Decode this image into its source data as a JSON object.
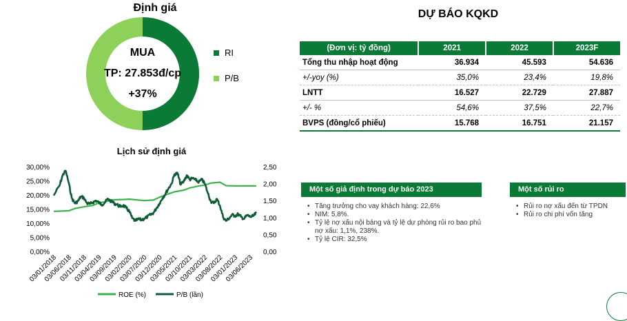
{
  "valuation": {
    "title": "Định giá",
    "recommendation": "MUA",
    "target_price": "TP: 27.853đ/cp",
    "upside": "+37%",
    "legend": [
      {
        "label": "RI",
        "color": "#0b7a36",
        "share": 0.5
      },
      {
        "label": "P/B",
        "color": "#8ed15a",
        "share": 0.5
      }
    ]
  },
  "forecast": {
    "title": "DỰ BÁO KQKD",
    "columns": [
      "(Đơn vị: tỷ đồng)",
      "2021",
      "2022",
      "2023F"
    ],
    "rows": [
      {
        "label": "Tổng thu nhập hoạt động",
        "values": [
          "36.934",
          "45.593",
          "54.636"
        ],
        "style": "bold"
      },
      {
        "label": "+/-yoy (%)",
        "values": [
          "35,0%",
          "23,4%",
          "19,8%"
        ],
        "style": "italic"
      },
      {
        "label": "LNTT",
        "values": [
          "16.527",
          "22.729",
          "27.887"
        ],
        "style": "bold"
      },
      {
        "label": "+/- %",
        "values": [
          "54,6%",
          "37,5%",
          "22,7%"
        ],
        "style": "italic"
      },
      {
        "label": "BVPS (đồng/cổ phiếu)",
        "values": [
          "15.768",
          "16.751",
          "21.157"
        ],
        "style": "bold"
      }
    ]
  },
  "assumptions": {
    "title": "Một số giả định trong dự báo 2023",
    "items": [
      "Tăng trưởng cho vay khách hàng: 22,6%",
      "NIM: 5,8%.",
      "Tỷ lệ nợ xấu nội bảng và tỷ lệ dự phòng rủi ro bao phủ nợ xấu: 1,1%, 238%.",
      "Tỷ lệ CIR: 32,5%"
    ]
  },
  "risks": {
    "title": "Một số rủi ro",
    "items": [
      "Rủi ro nợ xấu đến từ TPDN",
      "Rủi ro chi phí vốn tăng"
    ]
  },
  "chart_data": {
    "type": "line",
    "title": "Lịch sử định giá",
    "x_ticks": [
      "03/01/2018",
      "03/06/2018",
      "03/11/2018",
      "03/04/2019",
      "03/09/2019",
      "03/02/2020",
      "03/07/2020",
      "03/12/2020",
      "03/05/2021",
      "03/10/2021",
      "03/03/2022",
      "03/08/2022",
      "03/01/2023",
      "03/06/2023"
    ],
    "y_left": {
      "ticks": [
        "0,00%",
        "5,00%",
        "10,00%",
        "15,00%",
        "20,00%",
        "25,00%",
        "30,00%"
      ],
      "range": [
        0,
        30
      ]
    },
    "y_right": {
      "ticks": [
        "0,00",
        "0,50",
        "1,00",
        "1,50",
        "2,00",
        "2,50"
      ],
      "range": [
        0,
        2.5
      ]
    },
    "series": [
      {
        "name": "ROE (%)",
        "axis": "left",
        "color": "#3cb34a",
        "points": [
          [
            "03/01/2018",
            14.2
          ],
          [
            "03/06/2018",
            14.4
          ],
          [
            "03/08/2018",
            15.2
          ],
          [
            "03/11/2018",
            15.8
          ],
          [
            "03/02/2019",
            16.3
          ],
          [
            "03/04/2019",
            17.2
          ],
          [
            "03/06/2019",
            17.6
          ],
          [
            "03/09/2019",
            18.3
          ],
          [
            "03/12/2019",
            18.4
          ],
          [
            "03/02/2020",
            18.5
          ],
          [
            "03/05/2020",
            18.2
          ],
          [
            "03/07/2020",
            18.0
          ],
          [
            "03/10/2020",
            18.2
          ],
          [
            "03/12/2020",
            19.2
          ],
          [
            "03/03/2021",
            20.4
          ],
          [
            "03/05/2021",
            21.1
          ],
          [
            "03/08/2021",
            21.7
          ],
          [
            "03/10/2021",
            22.5
          ],
          [
            "03/01/2022",
            23.2
          ],
          [
            "03/03/2022",
            23.5
          ],
          [
            "03/05/2022",
            24.2
          ],
          [
            "03/08/2022",
            24.5
          ],
          [
            "03/10/2022",
            23.3
          ],
          [
            "03/01/2023",
            23.2
          ],
          [
            "03/06/2023",
            23.2
          ],
          [
            "03/08/2023",
            23.2
          ]
        ]
      },
      {
        "name": "P/B (lần)",
        "axis": "right",
        "color": "#0d5c36",
        "points": [
          [
            "03/01/2018",
            1.65
          ],
          [
            "03/03/2018",
            1.95
          ],
          [
            "03/04/2018",
            2.25
          ],
          [
            "03/05/2018",
            2.38
          ],
          [
            "03/06/2018",
            2.02
          ],
          [
            "03/07/2018",
            1.58
          ],
          [
            "03/08/2018",
            1.42
          ],
          [
            "03/09/2018",
            1.48
          ],
          [
            "03/10/2018",
            1.62
          ],
          [
            "03/11/2018",
            1.58
          ],
          [
            "03/12/2018",
            1.42
          ],
          [
            "03/01/2019",
            1.4
          ],
          [
            "03/02/2019",
            1.45
          ],
          [
            "03/03/2019",
            1.5
          ],
          [
            "03/04/2019",
            1.44
          ],
          [
            "03/05/2019",
            1.38
          ],
          [
            "03/06/2019",
            1.45
          ],
          [
            "03/07/2019",
            1.55
          ],
          [
            "03/08/2019",
            1.48
          ],
          [
            "03/09/2019",
            1.42
          ],
          [
            "03/10/2019",
            1.38
          ],
          [
            "03/11/2019",
            1.32
          ],
          [
            "03/12/2019",
            1.36
          ],
          [
            "03/01/2020",
            1.28
          ],
          [
            "03/02/2020",
            1.18
          ],
          [
            "03/03/2020",
            0.98
          ],
          [
            "03/04/2020",
            0.9
          ],
          [
            "03/05/2020",
            0.95
          ],
          [
            "03/06/2020",
            0.93
          ],
          [
            "03/07/2020",
            0.97
          ],
          [
            "03/08/2020",
            1.02
          ],
          [
            "03/09/2020",
            1.08
          ],
          [
            "03/10/2020",
            1.14
          ],
          [
            "03/11/2020",
            1.28
          ],
          [
            "03/12/2020",
            1.42
          ],
          [
            "03/01/2021",
            1.58
          ],
          [
            "03/02/2021",
            1.72
          ],
          [
            "03/03/2021",
            1.86
          ],
          [
            "03/04/2021",
            2.0
          ],
          [
            "03/05/2021",
            2.28
          ],
          [
            "03/06/2021",
            2.3
          ],
          [
            "03/07/2021",
            1.97
          ],
          [
            "03/08/2021",
            2.06
          ],
          [
            "03/09/2021",
            2.25
          ],
          [
            "03/10/2021",
            2.12
          ],
          [
            "03/11/2021",
            2.16
          ],
          [
            "03/12/2021",
            2.1
          ],
          [
            "03/01/2022",
            2.05
          ],
          [
            "03/02/2022",
            2.12
          ],
          [
            "03/03/2022",
            2.0
          ],
          [
            "03/04/2022",
            1.72
          ],
          [
            "03/05/2022",
            1.48
          ],
          [
            "03/06/2022",
            1.42
          ],
          [
            "03/07/2022",
            1.55
          ],
          [
            "03/08/2022",
            1.35
          ],
          [
            "03/09/2022",
            1.02
          ],
          [
            "03/10/2022",
            0.9
          ],
          [
            "03/11/2022",
            0.98
          ],
          [
            "03/12/2022",
            1.08
          ],
          [
            "03/01/2023",
            1.05
          ],
          [
            "03/02/2023",
            1.1
          ],
          [
            "03/03/2023",
            1.02
          ],
          [
            "03/04/2023",
            0.96
          ],
          [
            "03/05/2023",
            1.07
          ],
          [
            "03/06/2023",
            1.02
          ],
          [
            "03/07/2023",
            1.04
          ],
          [
            "03/08/2023",
            1.13
          ]
        ]
      }
    ],
    "legend_position": "bottom",
    "grid": false
  }
}
